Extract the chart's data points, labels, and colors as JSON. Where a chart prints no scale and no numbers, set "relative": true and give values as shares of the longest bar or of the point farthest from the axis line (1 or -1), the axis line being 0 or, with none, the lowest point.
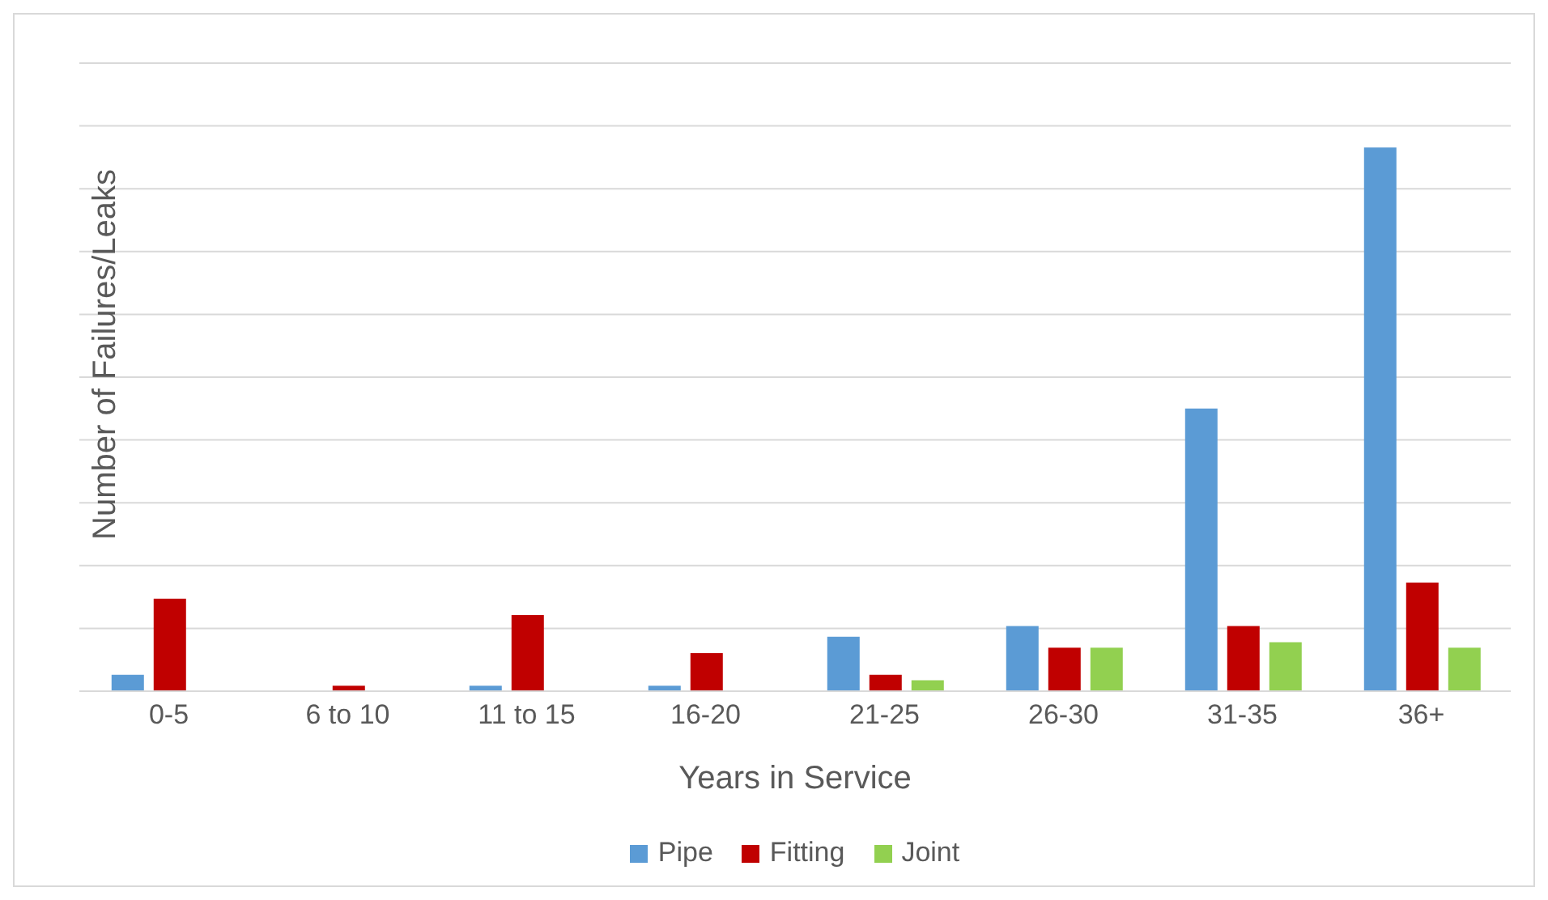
{
  "chart_data": {
    "type": "bar",
    "relative": true,
    "xlabel": "Years in Service",
    "ylabel": "Number of Failures/Leaks",
    "categories": [
      "0-5",
      "6 to 10",
      "11 to 15",
      "16-20",
      "21-25",
      "26-30",
      "31-35",
      "36+"
    ],
    "series": [
      {
        "name": "Pipe",
        "color": "#5b9bd5",
        "values": [
          0.03,
          0,
          0.01,
          0.01,
          0.1,
          0.12,
          0.52,
          1
        ]
      },
      {
        "name": "Fitting",
        "color": "#c00000",
        "values": [
          0.17,
          0.01,
          0.14,
          0.07,
          0.03,
          0.08,
          0.12,
          0.2
        ]
      },
      {
        "name": "Joint",
        "color": "#92d050",
        "values": [
          0,
          0,
          0,
          0,
          0.02,
          0.08,
          0.09,
          0.08
        ]
      }
    ],
    "grid": "y",
    "legend": "bottom"
  }
}
